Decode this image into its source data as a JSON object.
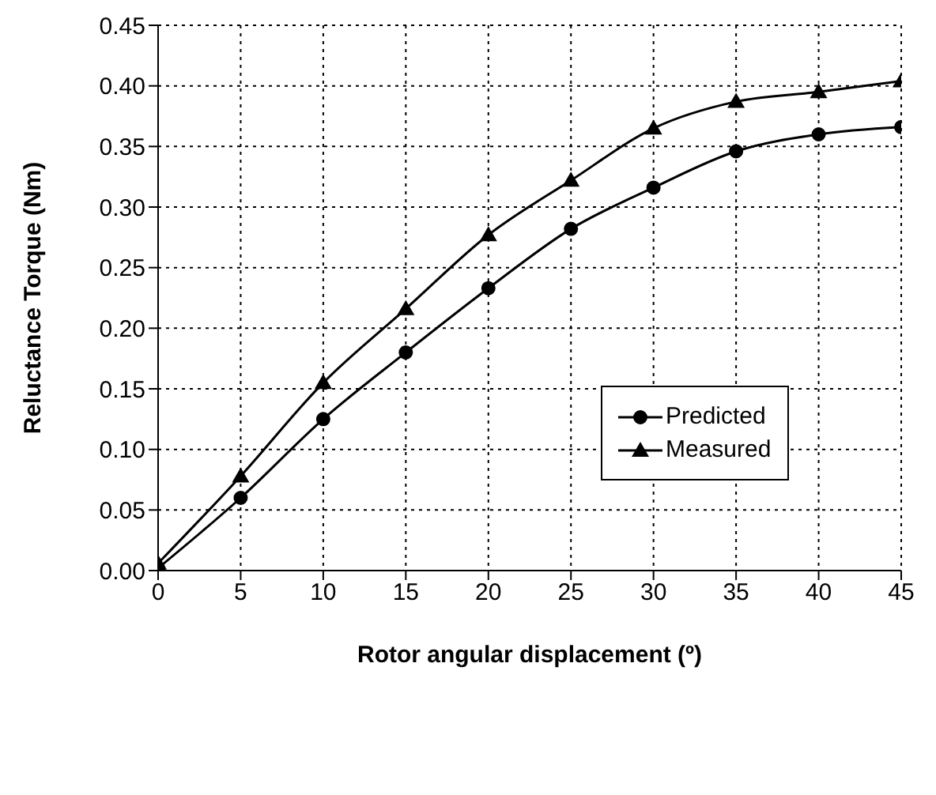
{
  "chart_data": {
    "type": "line",
    "xlabel": "Rotor angular displacement (º)",
    "ylabel": "Reluctance Torque (Nm)",
    "x": [
      0,
      5,
      10,
      15,
      20,
      25,
      30,
      35,
      40,
      45
    ],
    "series": [
      {
        "name": "Predicted",
        "color": "#000000",
        "marker": "circle",
        "values": [
          0.002,
          0.06,
          0.125,
          0.18,
          0.233,
          0.282,
          0.316,
          0.346,
          0.36,
          0.366
        ]
      },
      {
        "name": "Measured",
        "color": "#000000",
        "marker": "triangle",
        "values": [
          0.006,
          0.078,
          0.155,
          0.216,
          0.277,
          0.322,
          0.365,
          0.387,
          0.395,
          0.404
        ]
      }
    ],
    "xlim": [
      0,
      45
    ],
    "xticks": [
      0,
      5,
      10,
      15,
      20,
      25,
      30,
      35,
      40,
      45
    ],
    "ylim": [
      0,
      0.45
    ],
    "yticks": [
      {
        "value": 0,
        "label": "0.00"
      },
      0.05,
      {
        "value": 0.1,
        "label": "0.10"
      },
      0.15,
      {
        "value": 0.2,
        "label": "0.20"
      },
      0.25,
      {
        "value": 0.3,
        "label": "0.30"
      },
      0.35,
      {
        "value": 0.4,
        "label": "0.40"
      },
      0.45
    ],
    "grid": true,
    "legend": "right",
    "line_style": "solid"
  }
}
